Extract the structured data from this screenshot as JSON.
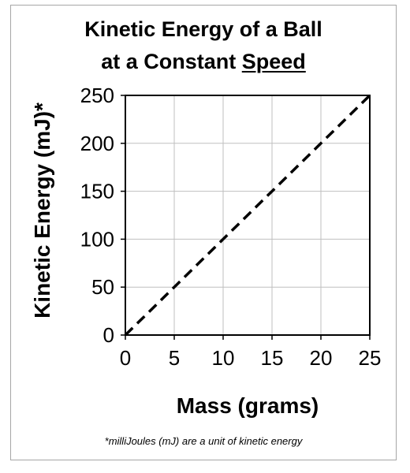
{
  "chart_data": {
    "type": "line",
    "title_line1": "Kinetic Energy of a Ball",
    "title_line2_prefix": "at a Constant ",
    "title_line2_underlined": "Speed",
    "xlabel": "Mass (grams)",
    "ylabel": "Kinetic Energy (mJ)*",
    "xlim": [
      0,
      25
    ],
    "ylim": [
      0,
      250
    ],
    "x_ticks": [
      0,
      5,
      10,
      15,
      20,
      25
    ],
    "y_ticks": [
      0,
      50,
      100,
      150,
      200,
      250
    ],
    "grid": true,
    "legend": "none",
    "series": [
      {
        "style": "dashed",
        "color": "#000000",
        "x": [
          0,
          5,
          10,
          15,
          20,
          25
        ],
        "y": [
          0,
          50,
          100,
          150,
          200,
          250
        ]
      }
    ],
    "footnote": "*milliJoules (mJ) are a unit of kinetic energy"
  }
}
